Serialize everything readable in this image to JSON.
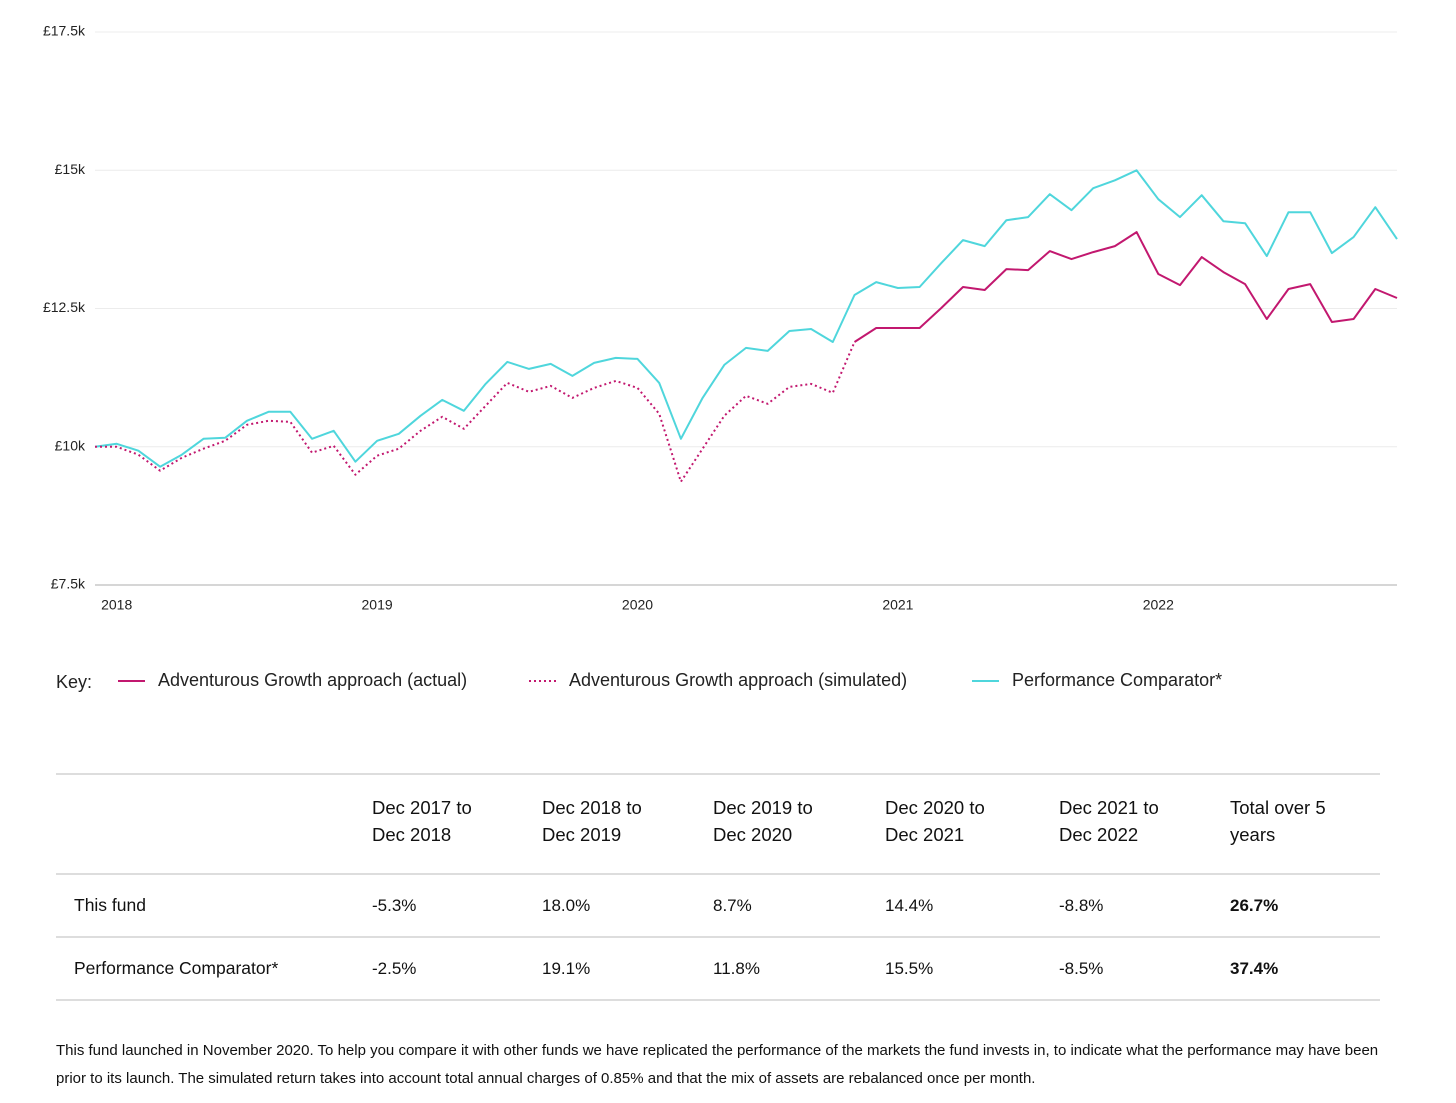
{
  "chart_data": {
    "type": "line",
    "categories": [
      null,
      "2018",
      null,
      null,
      null,
      null,
      null,
      null,
      null,
      null,
      null,
      null,
      null,
      "2019",
      null,
      null,
      null,
      null,
      null,
      null,
      null,
      null,
      null,
      null,
      null,
      "2020",
      null,
      null,
      null,
      null,
      null,
      null,
      null,
      null,
      null,
      null,
      null,
      "2021",
      null,
      null,
      null,
      null,
      null,
      null,
      null,
      null,
      null,
      null,
      null,
      "2022",
      null,
      null,
      null,
      null,
      null,
      null,
      null,
      null,
      null,
      null,
      null
    ],
    "ylim": [
      7500,
      17500
    ],
    "yticks": [
      {
        "value": 7500,
        "label": "£7.5k"
      },
      {
        "value": 10000,
        "label": "£10k"
      },
      {
        "value": 12500,
        "label": "£12.5k"
      },
      {
        "value": 15000,
        "label": "£15k"
      },
      {
        "value": 17500,
        "label": "£17.5k"
      }
    ],
    "grid": true,
    "legend_title": "Key:",
    "series": [
      {
        "name": "Adventurous Growth approach (actual)",
        "color": "#c2186f",
        "style": "solid",
        "values": [
          null,
          null,
          null,
          null,
          null,
          null,
          null,
          null,
          null,
          null,
          null,
          null,
          null,
          null,
          null,
          null,
          null,
          null,
          null,
          null,
          null,
          null,
          null,
          null,
          null,
          null,
          null,
          null,
          null,
          null,
          null,
          null,
          null,
          null,
          null,
          11895,
          12148,
          12148,
          12148,
          12509,
          12888,
          12834,
          13213,
          13195,
          13538,
          13394,
          13520,
          13628,
          13881,
          13123,
          12924,
          13430,
          13159,
          12942,
          12310,
          12852,
          12942,
          12256,
          12310,
          12852,
          12690
        ]
      },
      {
        "name": "Adventurous Growth approach (simulated)",
        "color": "#c2186f",
        "style": "dotted",
        "values": [
          10000,
          10000,
          9856,
          9567,
          9801,
          9964,
          10108,
          10397,
          10469,
          10451,
          9892,
          10018,
          9495,
          9838,
          9964,
          10289,
          10542,
          10325,
          10740,
          11155,
          10993,
          11101,
          10884,
          11065,
          11191,
          11065,
          10596,
          9368,
          9964,
          10560,
          10921,
          10776,
          11083,
          11137,
          10975,
          11895,
          null,
          null,
          null,
          null,
          null,
          null,
          null,
          null,
          null,
          null,
          null,
          null,
          null,
          null,
          null,
          null,
          null,
          null,
          null,
          null,
          null,
          null,
          null,
          null,
          null
        ]
      },
      {
        "name": "Performance Comparator*",
        "color": "#4fd6dc",
        "style": "solid",
        "values": [
          10000,
          10054,
          9928,
          9640,
          9856,
          10144,
          10162,
          10469,
          10632,
          10632,
          10144,
          10289,
          9729,
          10108,
          10235,
          10560,
          10848,
          10650,
          11137,
          11534,
          11408,
          11498,
          11282,
          11516,
          11606,
          11588,
          11155,
          10144,
          10884,
          11480,
          11787,
          11733,
          12094,
          12130,
          11895,
          12744,
          12978,
          12870,
          12888,
          13321,
          13736,
          13628,
          14097,
          14152,
          14567,
          14278,
          14675,
          14819,
          15000,
          14477,
          14152,
          14549,
          14079,
          14043,
          13448,
          14242,
          14242,
          13502,
          13791,
          14332,
          13755
        ]
      }
    ]
  },
  "table": {
    "header": [
      "Dec 2017 to Dec 2018",
      "Dec 2018 to Dec 2019",
      "Dec 2019 to Dec 2020",
      "Dec 2020 to Dec 2021",
      "Dec 2021 to Dec 2022",
      "Total over 5 years"
    ],
    "rows": [
      {
        "label": "This fund",
        "cells": [
          "-5.3%",
          "18.0%",
          "8.7%",
          "14.4%",
          "-8.8%",
          "26.7%"
        ]
      },
      {
        "label": "Performance Comparator*",
        "cells": [
          "-2.5%",
          "19.1%",
          "11.8%",
          "15.5%",
          "-8.5%",
          "37.4%"
        ]
      }
    ]
  },
  "footnote": "This fund launched in November 2020. To help you compare it with other funds we have replicated the performance of the markets the fund invests in, to indicate what the performance may have been prior to its launch. The simulated return takes into account total annual charges of 0.85% and that the mix of assets are rebalanced once per month."
}
